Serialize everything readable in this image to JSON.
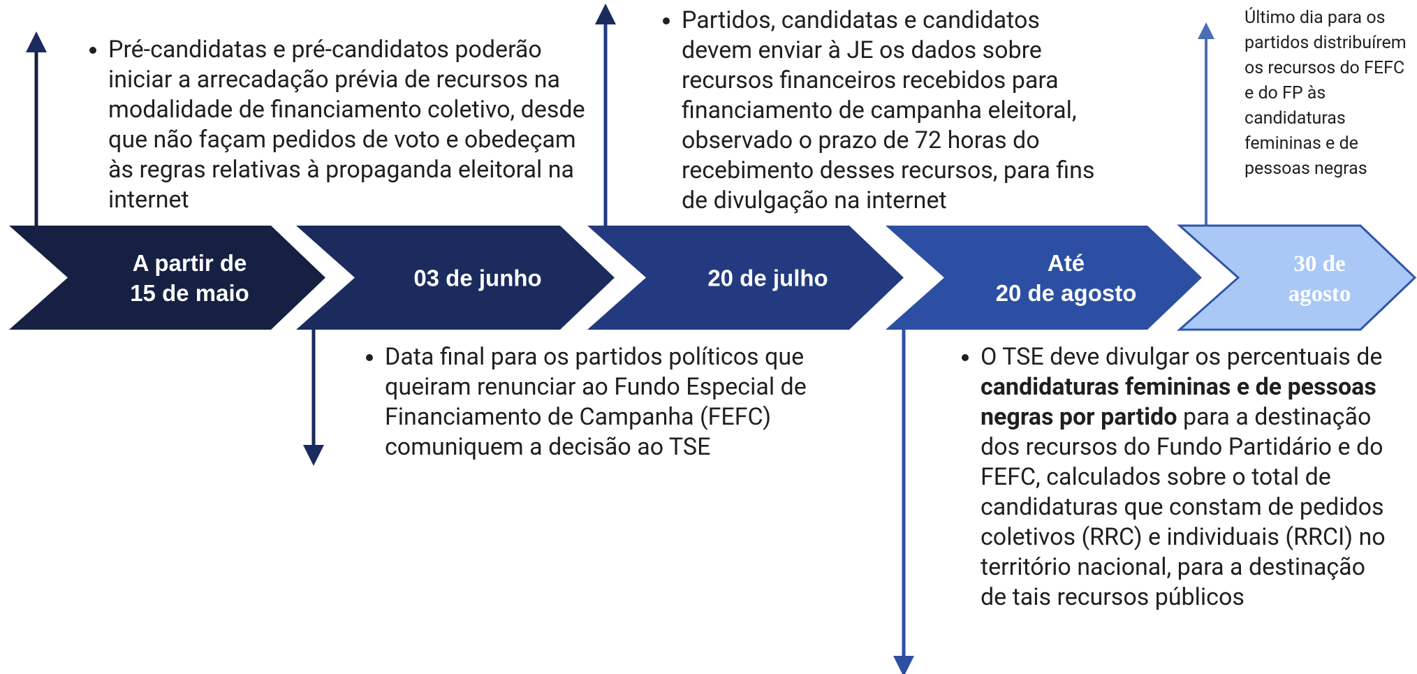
{
  "steps": [
    {
      "label": [
        "A partir de",
        "15 de maio"
      ],
      "color": "#152042"
    },
    {
      "label": [
        "03 de junho"
      ],
      "color": "#1c2b5e"
    },
    {
      "label": [
        "20 de julho"
      ],
      "color": "#233a80"
    },
    {
      "label": [
        "Até",
        "20 de agosto"
      ],
      "color": "#2d4fa3"
    },
    {
      "label": [
        "30 de",
        "agosto"
      ],
      "color": "#a9c8f6"
    }
  ],
  "notes": [
    {
      "text": "Pré-candidatas e pré-candidatos poderão iniciar a arrecadação prévia de recursos na modalidade de financiamento coletivo, desde que não façam pedidos de voto e obedeçam às regras relativas à propaganda eleitoral na internet"
    },
    {
      "text": "Data final para os partidos políticos que queiram renunciar ao Fundo Especial de Financiamento de Campanha (FEFC) comuniquem a decisão ao TSE"
    },
    {
      "text": "Partidos, candidatas e candidatos devem enviar à JE os dados sobre recursos financeiros recebidos para financiamento de campanha eleitoral, observado o prazo de 72 horas do recebimento desses recursos, para fins de divulgação na internet"
    },
    {
      "segments": [
        {
          "text": "O TSE deve divulgar os percentuais de ",
          "bold": false
        },
        {
          "text": "candidaturas femininas e de pessoas negras por partido",
          "bold": true
        },
        {
          "text": " para a destinação dos recursos do Fundo Partidário e do FEFC, calculados sobre o total de candidaturas que constam de pedidos coletivos (RRC) e individuais (RRCI) no território nacional, para a destinação de tais recursos públicos",
          "bold": false
        }
      ]
    },
    {
      "text": "Último dia para os partidos distribuírem os recursos do FEFC e do  FP às candidaturas femininas e de pessoas negras"
    }
  ]
}
